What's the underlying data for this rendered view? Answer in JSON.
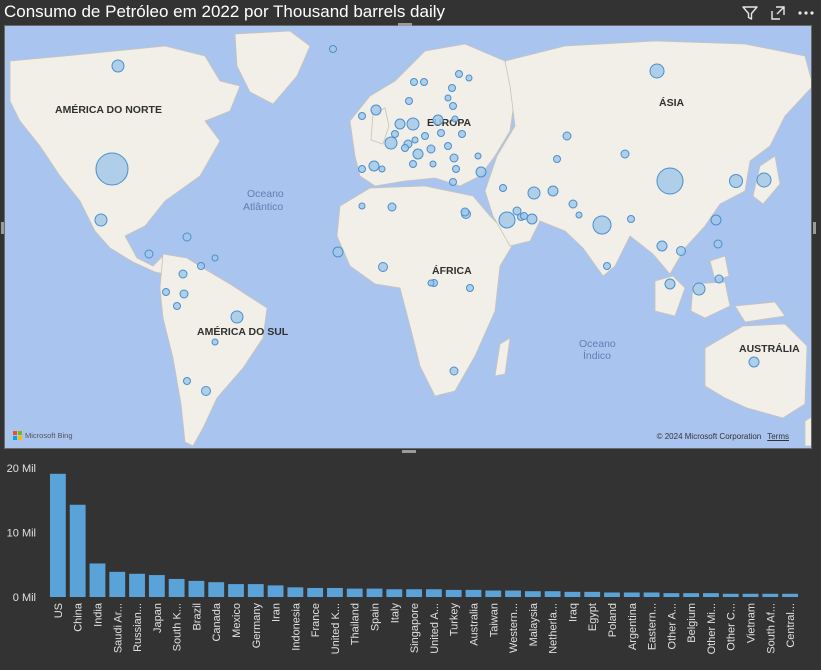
{
  "visual": {
    "title": "Consumo de Petróleo em 2022 por Thousand barrels daily",
    "icons": [
      "filter-icon",
      "focus-mode-icon",
      "more-options-icon"
    ]
  },
  "map": {
    "continent_labels": {
      "north_america": "AMÉRICA DO NORTE",
      "europe": "EUROPA",
      "asia": "ÁSIA",
      "africa": "ÁFRICA",
      "south_america": "AMÉRICA DO SUL",
      "australia": "AUSTRÁLIA"
    },
    "ocean_labels": {
      "atlantic_1": "Oceano",
      "atlantic_2": "Atlântico",
      "indian_1": "Oceano",
      "indian_2": "Índico"
    },
    "attribution": "Microsoft Bing",
    "copyright": "© 2024 Microsoft Corporation",
    "terms": "Terms",
    "colors": {
      "ocean": "#aac4f0",
      "land": "#f1efe8",
      "bubble_fill": "#a3c8e8",
      "bubble_stroke": "#4a8fce"
    }
  },
  "chart_data": {
    "type": "bar",
    "title": "",
    "xlabel": "",
    "ylabel": "",
    "ylim": [
      0,
      20000
    ],
    "y_ticks": [
      {
        "value": 0,
        "label": "0 Mil"
      },
      {
        "value": 10000,
        "label": "10 Mil"
      },
      {
        "value": 20000,
        "label": "20 Mil"
      }
    ],
    "bar_color": "#5aa3d8",
    "categories": [
      "US",
      "China",
      "India",
      "Saudi Ar...",
      "Russian...",
      "Japan",
      "South K...",
      "Brazil",
      "Canada",
      "Mexico",
      "Germany",
      "Iran",
      "Indonesia",
      "France",
      "United K...",
      "Thailand",
      "Spain",
      "Italy",
      "Singapore",
      "United A...",
      "Turkey",
      "Australia",
      "Taiwan",
      "Western...",
      "Malaysia",
      "Netherla...",
      "Iraq",
      "Egypt",
      "Poland",
      "Argentina",
      "Eastern...",
      "Other A...",
      "Belgium",
      "Other Mi...",
      "Other C...",
      "Vietnam",
      "South Af...",
      "Central..."
    ],
    "values": [
      19100,
      14300,
      5200,
      3900,
      3600,
      3400,
      2800,
      2500,
      2300,
      2000,
      2000,
      1800,
      1500,
      1400,
      1400,
      1300,
      1300,
      1200,
      1200,
      1200,
      1100,
      1100,
      1000,
      1000,
      900,
      900,
      800,
      800,
      700,
      700,
      700,
      600,
      600,
      600,
      500,
      500,
      500,
      500
    ]
  }
}
